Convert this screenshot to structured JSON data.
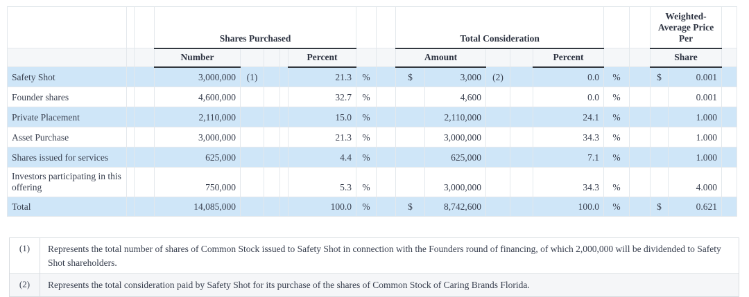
{
  "table": {
    "group_headers": [
      "Shares Purchased",
      "Total Consideration",
      "Weighted-Average Price Per"
    ],
    "sub_headers": {
      "number": "Number",
      "shares_percent": "Percent",
      "amount": "Amount",
      "consideration_percent": "Percent",
      "share": "Share"
    },
    "percent_sign": "%",
    "rows": [
      {
        "label": "Safety Shot",
        "number": "3,000,000",
        "number_note": "(1)",
        "shares_pct": "21.3",
        "amount_cur": "$",
        "amount": "3,000",
        "amount_note": "(2)",
        "amount_pct": "0.0",
        "share_cur": "$",
        "share_price": "0.001",
        "shaded": true
      },
      {
        "label": "Founder shares",
        "number": "4,600,000",
        "number_note": "",
        "shares_pct": "32.7",
        "amount_cur": "",
        "amount": "4,600",
        "amount_note": "",
        "amount_pct": "0.0",
        "share_cur": "",
        "share_price": "0.001",
        "shaded": false
      },
      {
        "label": "Private Placement",
        "number": "2,110,000",
        "number_note": "",
        "shares_pct": "15.0",
        "amount_cur": "",
        "amount": "2,110,000",
        "amount_note": "",
        "amount_pct": "24.1",
        "share_cur": "",
        "share_price": "1.000",
        "shaded": true
      },
      {
        "label": "Asset Purchase",
        "number": "3,000,000",
        "number_note": "",
        "shares_pct": "21.3",
        "amount_cur": "",
        "amount": "3,000,000",
        "amount_note": "",
        "amount_pct": "34.3",
        "share_cur": "",
        "share_price": "1.000",
        "shaded": false
      },
      {
        "label": "Shares issued for services",
        "number": "625,000",
        "number_note": "",
        "shares_pct": "4.4",
        "amount_cur": "",
        "amount": "625,000",
        "amount_note": "",
        "amount_pct": "7.1",
        "share_cur": "",
        "share_price": "1.000",
        "shaded": true
      },
      {
        "label": "Investors participating in this offering",
        "number": "750,000",
        "number_note": "",
        "shares_pct": "5.3",
        "amount_cur": "",
        "amount": "3,000,000",
        "amount_note": "",
        "amount_pct": "34.3",
        "share_cur": "",
        "share_price": "4.000",
        "shaded": false,
        "tall": true,
        "pre_total": true
      }
    ],
    "total_row": {
      "label": "Total",
      "number": "14,085,000",
      "number_note": "",
      "shares_pct": "100.0",
      "amount_cur": "$",
      "amount": "8,742,600",
      "amount_note": "",
      "amount_pct": "100.0",
      "share_cur": "$",
      "share_price": "0.621",
      "shaded": true
    }
  },
  "footnotes": [
    {
      "marker": "(1)",
      "text": "Represents the total number of shares of Common Stock issued to Safety Shot in connection with the Founders round of financing, of which 2,000,000 will be dividended to Safety Shot shareholders."
    },
    {
      "marker": "(2)",
      "text": "Represents the total consideration paid by Safety Shot for its purchase of the shares of Common Stock of Caring Brands Florida."
    }
  ],
  "colors": {
    "shaded_row": "#cfe6f8",
    "header_row_bg": "#f5f7f9",
    "rule_black": "#32383f",
    "grid_border": "#e3e8ec",
    "footnote_alt_bg": "#f5f6f8",
    "text": "#3a4150"
  }
}
